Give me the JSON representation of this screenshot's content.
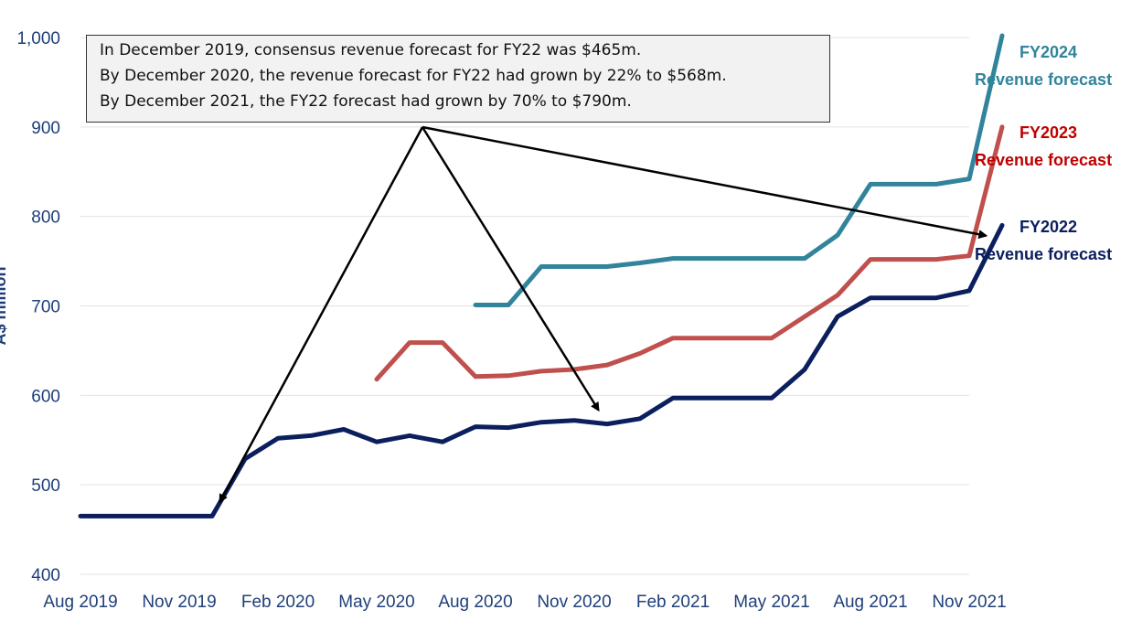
{
  "chart_data": {
    "type": "line",
    "title": "",
    "xlabel": "",
    "ylabel": "A$ million",
    "ylim": [
      400,
      1000
    ],
    "yticks": [
      400,
      500,
      600,
      700,
      800,
      900,
      1000
    ],
    "ytick_labels": [
      "400",
      "500",
      "600",
      "700",
      "800",
      "900",
      "1,000"
    ],
    "x_start": "Aug 2019",
    "x_end": "Nov 2021",
    "xtick_labels": [
      "Aug 2019",
      "Nov 2019",
      "Feb 2020",
      "May 2020",
      "Aug 2020",
      "Nov 2020",
      "Feb 2021",
      "May 2021",
      "Aug 2021",
      "Nov 2021"
    ],
    "grid": "horizontal",
    "legend": "right end labels",
    "series": [
      {
        "name": "FY2022 Revenue forecast",
        "color": "#0b1f5e",
        "x": [
          "2019-08-01",
          "2019-09-01",
          "2019-10-01",
          "2019-11-01",
          "2019-12-01",
          "2020-01-01",
          "2020-02-01",
          "2020-03-01",
          "2020-04-01",
          "2020-05-01",
          "2020-06-01",
          "2020-07-01",
          "2020-08-01",
          "2020-09-01",
          "2020-10-01",
          "2020-11-01",
          "2020-12-01",
          "2021-01-01",
          "2021-02-01",
          "2021-03-01",
          "2021-04-01",
          "2021-05-01",
          "2021-06-01",
          "2021-07-01",
          "2021-08-01",
          "2021-09-01",
          "2021-10-01",
          "2021-11-01",
          "2021-12-01"
        ],
        "values": [
          465,
          465,
          465,
          465,
          465,
          529,
          552,
          555,
          562,
          548,
          555,
          548,
          565,
          564,
          570,
          572,
          568,
          574,
          597,
          597,
          597,
          597,
          629,
          688,
          709,
          709,
          709,
          717,
          790
        ]
      },
      {
        "name": "FY2023 Revenue forecast",
        "color": "#c0504d",
        "x": [
          "2020-05-01",
          "2020-06-01",
          "2020-07-01",
          "2020-08-01",
          "2020-09-01",
          "2020-10-01",
          "2020-11-01",
          "2020-12-01",
          "2021-01-01",
          "2021-02-01",
          "2021-03-01",
          "2021-04-01",
          "2021-05-01",
          "2021-06-01",
          "2021-07-01",
          "2021-08-01",
          "2021-09-01",
          "2021-10-01",
          "2021-11-01",
          "2021-12-01"
        ],
        "values": [
          618,
          659,
          659,
          621,
          622,
          627,
          629,
          634,
          647,
          664,
          664,
          664,
          664,
          688,
          712,
          752,
          752,
          752,
          756,
          900
        ]
      },
      {
        "name": "FY2024 Revenue forecast",
        "color": "#31849b",
        "x": [
          "2020-08-01",
          "2020-09-01",
          "2020-10-01",
          "2020-11-01",
          "2020-12-01",
          "2021-01-01",
          "2021-02-01",
          "2021-03-01",
          "2021-04-01",
          "2021-05-01",
          "2021-06-01",
          "2021-07-01",
          "2021-08-01",
          "2021-09-01",
          "2021-10-01",
          "2021-11-01",
          "2021-12-01"
        ],
        "values": [
          701,
          701,
          744,
          744,
          744,
          748,
          753,
          753,
          753,
          753,
          753,
          779,
          836,
          836,
          836,
          842,
          1002
        ]
      }
    ],
    "end_labels": [
      {
        "series": 2,
        "year": "FY2024",
        "desc": "Revenue forecast",
        "color": "#31849b"
      },
      {
        "series": 1,
        "year": "FY2023",
        "desc": "Revenue forecast",
        "color": "#c00000"
      },
      {
        "series": 0,
        "year": "FY2022",
        "desc": "Revenue forecast",
        "color": "#0b1f5e"
      }
    ],
    "annotation": {
      "lines": [
        "In December 2019, consensus revenue forecast for FY22 was $465m.",
        "By December 2020, the revenue forecast for FY22 had grown by 22% to $568m.",
        "By December 2021, the FY22 forecast had grown by 70% to $790m."
      ],
      "arrow_targets": [
        {
          "x": "2019-12-01",
          "y": 465
        },
        {
          "x": "2020-12-01",
          "y": 568
        },
        {
          "x": "2021-12-01",
          "y": 775
        }
      ]
    }
  }
}
